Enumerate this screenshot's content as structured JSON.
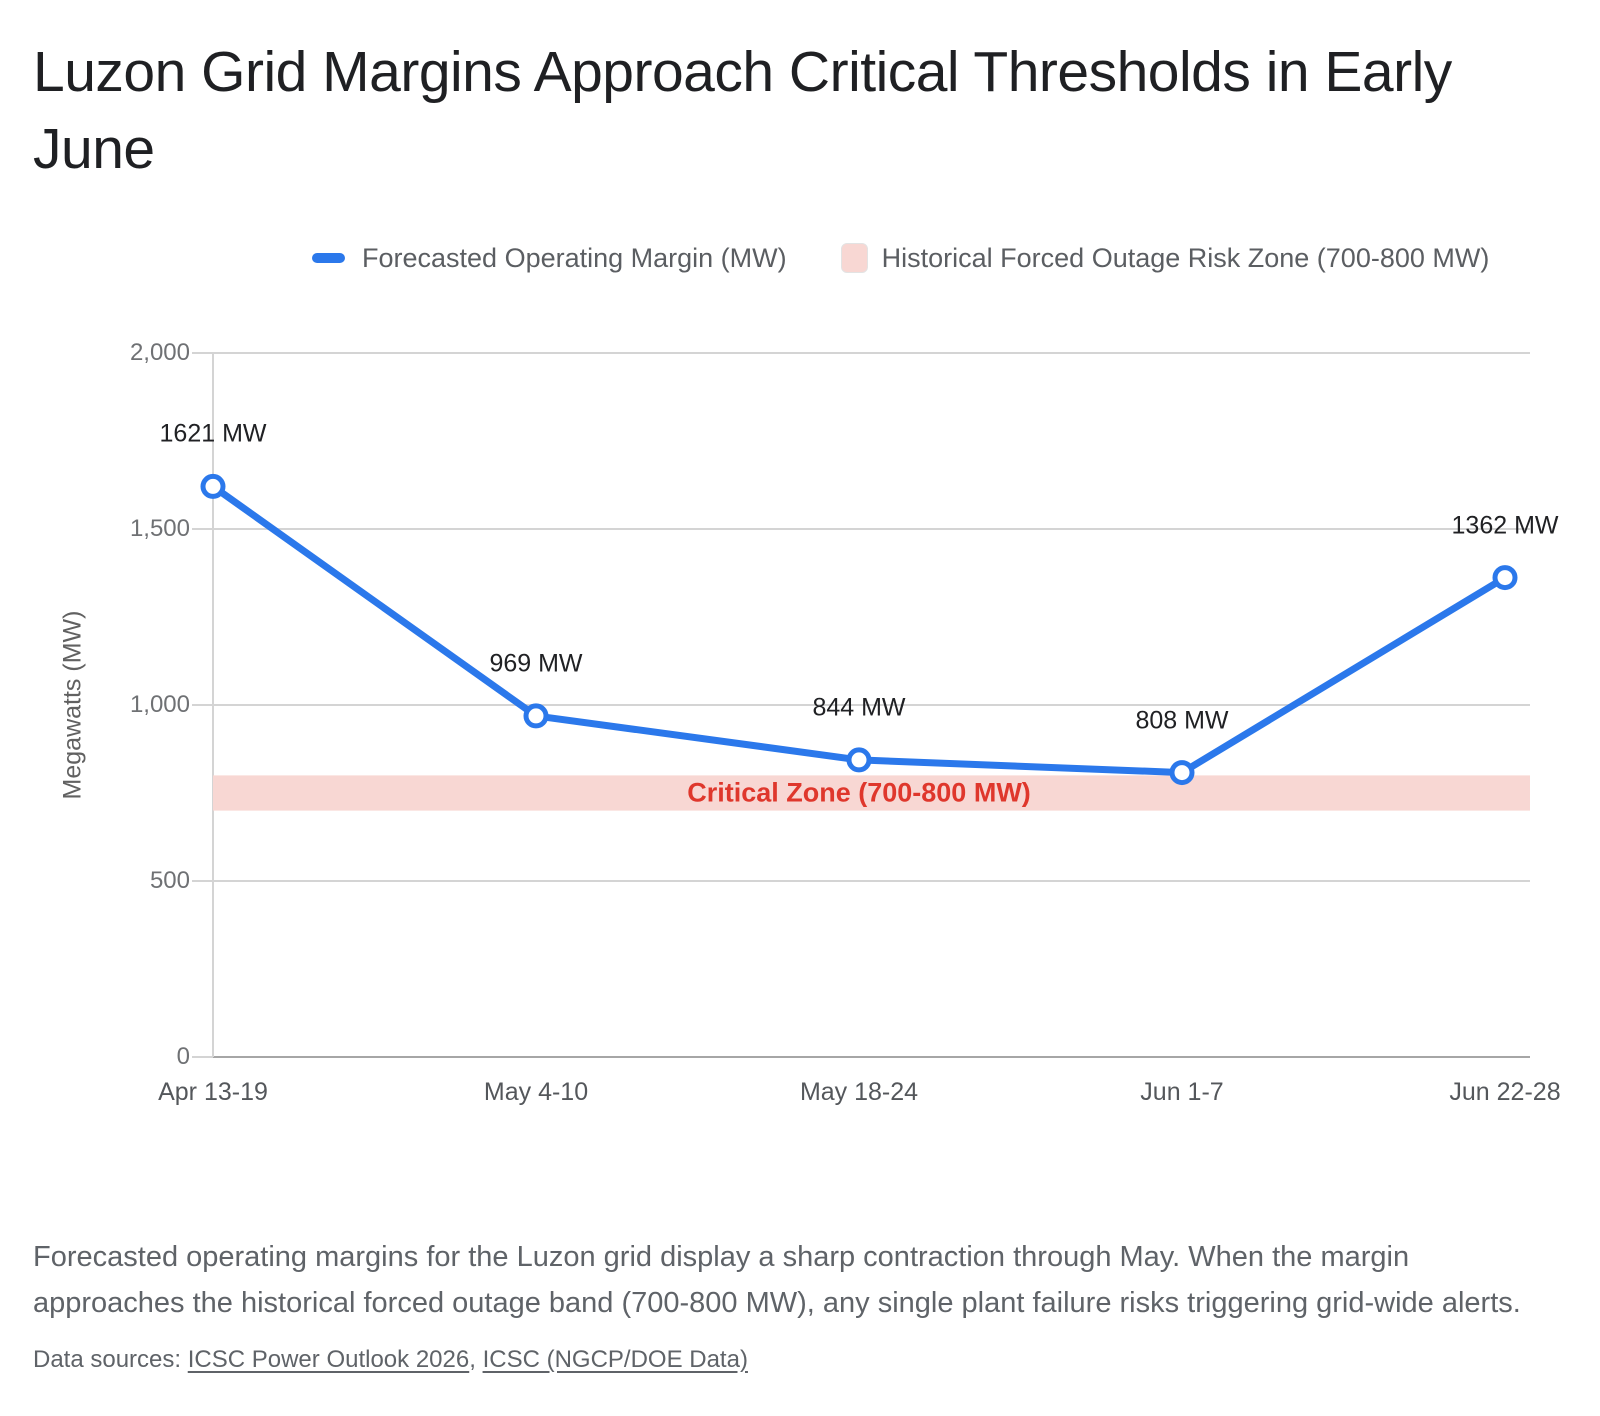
{
  "title": "Luzon Grid Margins Approach Critical Thresholds in Early June",
  "legend": {
    "series_label": "Forecasted Operating Margin (MW)",
    "band_label": "Historical Forced Outage Risk Zone (700-800 MW)"
  },
  "chart_data": {
    "type": "line",
    "title": "Luzon Grid Margins Approach Critical Thresholds in Early June",
    "categories": [
      "Apr 13-19",
      "May 4-10",
      "May 18-24",
      "Jun 1-7",
      "Jun 22-28"
    ],
    "series": [
      {
        "name": "Forecasted Operating Margin (MW)",
        "values": [
          1621,
          969,
          844,
          808,
          1362
        ]
      }
    ],
    "point_labels": [
      "1621 MW",
      "969 MW",
      "844 MW",
      "808 MW",
      "1362 MW"
    ],
    "band": {
      "from": 700,
      "to": 800,
      "label": "Critical Zone (700-800 MW)"
    },
    "xlabel": "",
    "ylabel": "Megawatts (MW)",
    "ylim": [
      0,
      2000
    ],
    "yticks": [
      0,
      500,
      1000,
      1500,
      2000
    ],
    "ytick_labels": [
      "0",
      "500",
      "1,000",
      "1,500",
      "2,000"
    ],
    "grid": "horizontal",
    "legend_position": "top"
  },
  "colors": {
    "line": "#2b78eb",
    "point_fill": "#ffffff",
    "band_fill": "#f8d7d3",
    "band_text": "#df372c",
    "grid": "#d4d4d4",
    "axis": "#a6a6a6",
    "title_text": "#1f2023",
    "point_label_text": "#202124",
    "ytick_text": "#6f7174",
    "xtick_text": "#54575b",
    "caption_text": "#5f6368"
  },
  "caption": "Forecasted operating margins for the Luzon grid display a sharp contraction through May. When the margin approaches the historical forced outage band (700-800 MW), any single plant failure risks triggering grid-wide alerts.",
  "sources": {
    "prefix": "Data sources: ",
    "links": [
      "ICSC Power Outlook 2026",
      "ICSC (NGCP/DOE Data)"
    ],
    "separator": ", "
  }
}
